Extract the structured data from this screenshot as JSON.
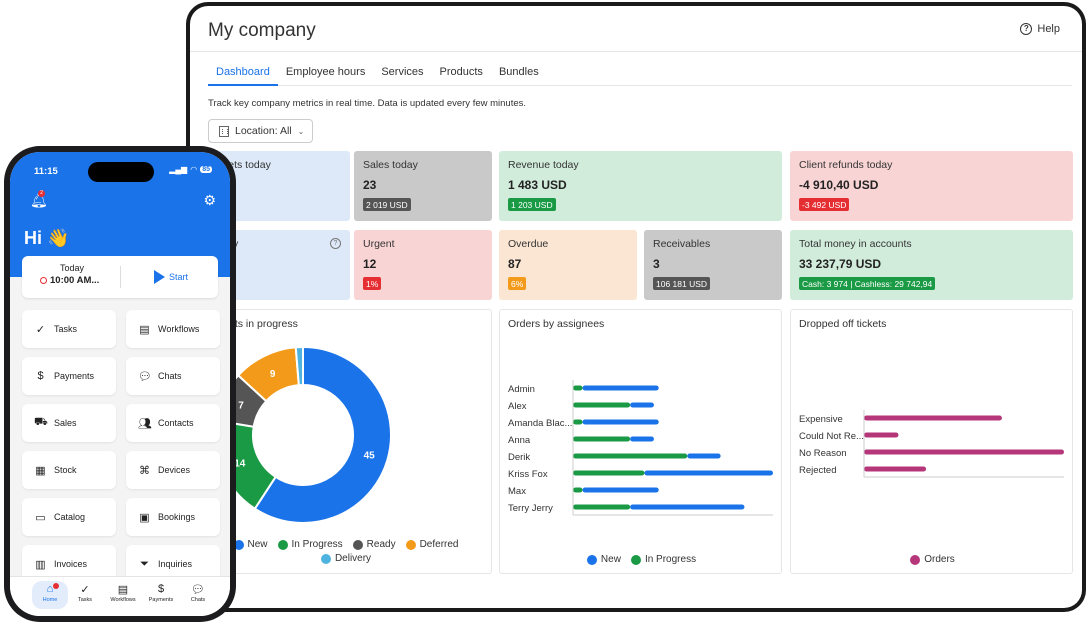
{
  "app": {
    "title": "My company",
    "help": "Help"
  },
  "tabs": [
    "Dashboard",
    "Employee hours",
    "Services",
    "Products",
    "Bundles"
  ],
  "description": "Track key company metrics in real time. Data is updated every few minutes.",
  "location": "Location: All",
  "cards": {
    "tickets_today": {
      "label": "kets today"
    },
    "sales_today": {
      "label": "Sales today",
      "value": "23",
      "badge": "2 019 USD"
    },
    "revenue_today": {
      "label": "Revenue today",
      "value": "1 483 USD",
      "badge": "1 203 USD"
    },
    "client_refunds": {
      "label": "Client refunds today",
      "value": "-4 910,40 USD",
      "badge": "-3 492 USD"
    },
    "partial": {
      "label": "y"
    },
    "urgent": {
      "label": "Urgent",
      "value": "12",
      "badge": "1%"
    },
    "overdue": {
      "label": "Overdue",
      "value": "87",
      "badge": "6%"
    },
    "receivables": {
      "label": "Receivables",
      "value": "3",
      "badge": "106 181 USD"
    },
    "total_money": {
      "label": "Total money in accounts",
      "value": "33 237,79 USD",
      "badge": "Cash: 3 974 | Cashless: 29 742,94"
    }
  },
  "panels": {
    "tickets_in_progress": {
      "title": "ets in progress",
      "legend": [
        "New",
        "In Progress",
        "Ready",
        "Deferred",
        "Delivery"
      ]
    },
    "orders_by_assignees": {
      "title": "Orders by assignees",
      "legend": [
        "New",
        "In Progress"
      ]
    },
    "dropped_off": {
      "title": "Dropped off tickets",
      "legend": [
        "Orders"
      ]
    }
  },
  "chart_data": [
    {
      "type": "pie",
      "categories": [
        "New",
        "In Progress",
        "Ready",
        "Deferred",
        "Delivery"
      ],
      "values": [
        45,
        14,
        7,
        9,
        1
      ],
      "colors": [
        "#1a73e8",
        "#1a9a45",
        "#555555",
        "#f49a1a",
        "#4fb3e0"
      ],
      "labels_shown": [
        "45",
        "14",
        "7",
        "9",
        ""
      ]
    },
    {
      "type": "bar",
      "orientation": "horizontal",
      "stacked": true,
      "categories": [
        "Admin",
        "Alex",
        "Amanda Blac...",
        "Anna",
        "Derik",
        "Kriss Fox",
        "Max",
        "Terry Jerry"
      ],
      "series": [
        {
          "name": "In Progress",
          "color": "#1a9a45",
          "values": [
            2,
            12,
            2,
            12,
            24,
            15,
            2,
            12
          ]
        },
        {
          "name": "New",
          "color": "#1a73e8",
          "values": [
            16,
            5,
            16,
            5,
            7,
            27,
            16,
            24
          ]
        }
      ]
    },
    {
      "type": "bar",
      "orientation": "horizontal",
      "categories": [
        "Expensive",
        "Could Not Re...",
        "No Reason",
        "Rejected"
      ],
      "series": [
        {
          "name": "Orders",
          "color": "#b5377a",
          "values": [
            20,
            5,
            29,
            9
          ]
        }
      ]
    }
  ],
  "phone": {
    "time": "11:15",
    "battery": "85",
    "bell_count": "2",
    "greeting": "Hi 👋",
    "today_label": "Today",
    "today_time": "10:00 AM...",
    "start_label": "Start",
    "buttons": [
      "Tasks",
      "Workflows",
      "Payments",
      "Chats",
      "Sales",
      "Contacts",
      "Stock",
      "Devices",
      "Catalog",
      "Bookings",
      "Invoices",
      "Inquiries"
    ],
    "tabbar": [
      "Home",
      "Tasks",
      "Workflows",
      "Payments",
      "Chats"
    ]
  }
}
